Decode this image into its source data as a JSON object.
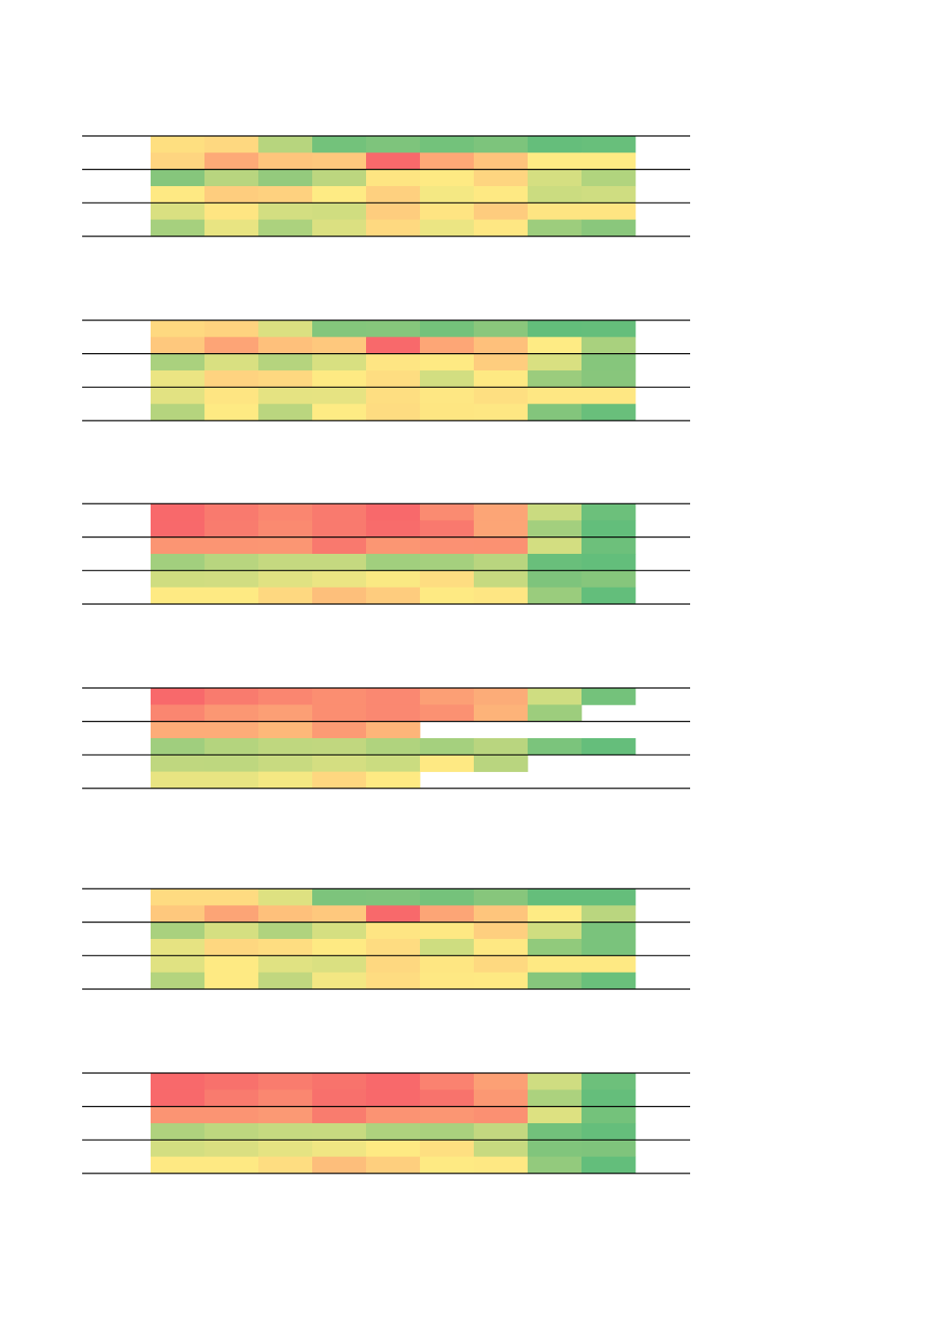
{
  "chart_data": [
    {
      "type": "heatmap",
      "title": "",
      "xlabel": "",
      "ylabel": "",
      "color_scale": "red-yellow-green",
      "rows": [
        [
          "#fedf80",
          "#fed880",
          "#b7d57e",
          "#73c27b",
          "#7ec47c",
          "#73c27b",
          "#7dc47c",
          "#65be7b",
          "#68bf7b"
        ],
        [
          "#fed580",
          "#fdaa77",
          "#fec57c",
          "#fec87d",
          "#f8696b",
          "#fda876",
          "#fec47c",
          "#feeb84",
          "#feeb84"
        ],
        [
          "#86c67c",
          "#b8d57f",
          "#94ca7d",
          "#bcd67f",
          "#fee582",
          "#feea83",
          "#fed580",
          "#d5df81",
          "#b1d47e"
        ],
        [
          "#fee983",
          "#fecd7e",
          "#fed17f",
          "#feeb84",
          "#fed07f",
          "#f4e883",
          "#fee983",
          "#cbdc80",
          "#cfdd81"
        ],
        [
          "#d9e081",
          "#fee582",
          "#d3de81",
          "#d0dd80",
          "#fecd7e",
          "#fee482",
          "#fecc7e",
          "#fee582",
          "#fee582"
        ],
        [
          "#a6d07e",
          "#e8e482",
          "#acd27e",
          "#dbe081",
          "#fed980",
          "#ebe583",
          "#fee783",
          "#9dcd7d",
          "#8ac77c"
        ]
      ]
    },
    {
      "type": "heatmap",
      "title": "",
      "xlabel": "",
      "ylabel": "",
      "color_scale": "red-yellow-green",
      "rows": [
        [
          "#fed980",
          "#fed37f",
          "#dbe081",
          "#84c67c",
          "#86c67c",
          "#74c27b",
          "#8ac77c",
          "#63be7b",
          "#65be7b"
        ],
        [
          "#fec87d",
          "#fda476",
          "#fec07b",
          "#fec87d",
          "#f8696b",
          "#fda676",
          "#fec07b",
          "#feeb84",
          "#a9d17e"
        ],
        [
          "#aad17e",
          "#d9e081",
          "#b5d47e",
          "#d8e081",
          "#fee583",
          "#feea83",
          "#fecd7e",
          "#d9e081",
          "#86c67c"
        ],
        [
          "#ebe583",
          "#fed380",
          "#fed880",
          "#feea83",
          "#fedd81",
          "#d2de81",
          "#fee983",
          "#9bcc7d",
          "#88c67c"
        ],
        [
          "#e2e282",
          "#fee582",
          "#e5e382",
          "#e6e382",
          "#fede81",
          "#fee783",
          "#fedf81",
          "#fee783",
          "#fee783"
        ],
        [
          "#b5d47e",
          "#feea83",
          "#bad67f",
          "#feeb84",
          "#fedc81",
          "#fee682",
          "#fee783",
          "#83c57c",
          "#69bf7b"
        ]
      ]
    },
    {
      "type": "heatmap",
      "title": "",
      "xlabel": "",
      "ylabel": "",
      "color_scale": "red-yellow-green",
      "rows": [
        [
          "#f8696b",
          "#f97a6e",
          "#fa8670",
          "#f97a6e",
          "#f8696b",
          "#fa8b71",
          "#fca576",
          "#cadb80",
          "#6cc07b"
        ],
        [
          "#f8696b",
          "#f97c6e",
          "#fa8a70",
          "#f97a6e",
          "#f86c6b",
          "#f9796e",
          "#fca576",
          "#a3cf7e",
          "#63be7b"
        ],
        [
          "#fb9573",
          "#fb9573",
          "#fb9673",
          "#f9796e",
          "#fb9673",
          "#fb9173",
          "#fb9172",
          "#d3de81",
          "#6dc07b"
        ],
        [
          "#a2cf7e",
          "#b8d57f",
          "#c5d980",
          "#c5d980",
          "#a1cf7e",
          "#a5d07e",
          "#b9d57f",
          "#69bf7b",
          "#63be7b"
        ],
        [
          "#cfdd80",
          "#d1dd81",
          "#e0e282",
          "#ebe583",
          "#fae983",
          "#fedd81",
          "#c6da80",
          "#7ec47c",
          "#86c67c"
        ],
        [
          "#feea83",
          "#feea83",
          "#fed880",
          "#fdbf7b",
          "#fecc7e",
          "#feea83",
          "#fee683",
          "#9acc7d",
          "#63be7b"
        ]
      ]
    },
    {
      "type": "heatmap",
      "title": "",
      "xlabel": "",
      "ylabel": "",
      "color_scale": "red-yellow-green",
      "rows": [
        [
          "#f8696b",
          "#f97b6e",
          "#fa8670",
          "#fb8e71",
          "#fa8871",
          "#fc9f75",
          "#fcac78",
          "#cfdd81",
          "#74c27b"
        ],
        [
          "#fa8670",
          "#fb9773",
          "#fc9f75",
          "#fb8e71",
          "#fa8871",
          "#fb9172",
          "#fdb379",
          "#9dcd7d",
          null
        ],
        [
          "#fdac78",
          "#fdac78",
          "#fdb879",
          "#fc9b74",
          "#fdb579",
          null,
          null,
          null,
          null
        ],
        [
          "#a0ce7e",
          "#b4d47e",
          "#bfd77f",
          "#c1d77f",
          "#b0d37e",
          "#a5d07e",
          "#b9d57f",
          "#7bc47c",
          "#65be7b"
        ],
        [
          "#bfd77f",
          "#bed77f",
          "#c8da80",
          "#d4de81",
          "#cbdc80",
          "#fee983",
          "#b9d57f",
          null,
          null
        ],
        [
          "#e8e482",
          "#e8e482",
          "#f4e883",
          "#fed780",
          "#feea83",
          null,
          null,
          null,
          null
        ]
      ]
    },
    {
      "type": "heatmap",
      "title": "",
      "xlabel": "",
      "ylabel": "",
      "color_scale": "red-yellow-green",
      "rows": [
        [
          "#fedb81",
          "#fedb81",
          "#dee181",
          "#7dc47c",
          "#7fc47c",
          "#75c27b",
          "#87c67c",
          "#65be7b",
          "#65be7b"
        ],
        [
          "#fec87d",
          "#fca476",
          "#fec07b",
          "#fec87d",
          "#f8696b",
          "#fca576",
          "#fec57c",
          "#feeb84",
          "#bad67f"
        ],
        [
          "#a9d17e",
          "#d5df81",
          "#b0d37e",
          "#d5df81",
          "#fee583",
          "#fee883",
          "#fecf7f",
          "#cfdd80",
          "#7ac37c"
        ],
        [
          "#e6e382",
          "#fed780",
          "#fedd81",
          "#feea83",
          "#fedc81",
          "#cedd80",
          "#fee883",
          "#91ca7c",
          "#7ac37c"
        ],
        [
          "#e0e282",
          "#feea83",
          "#e0e282",
          "#dae081",
          "#fed880",
          "#fee682",
          "#fed980",
          "#fee983",
          "#fee983"
        ],
        [
          "#b4d47e",
          "#feea83",
          "#c1d77f",
          "#f3e783",
          "#fedc81",
          "#fee883",
          "#fee983",
          "#86c67c",
          "#6ac07b"
        ]
      ]
    },
    {
      "type": "heatmap",
      "title": "",
      "xlabel": "",
      "ylabel": "",
      "color_scale": "red-yellow-green",
      "rows": [
        [
          "#f8696b",
          "#f8716c",
          "#f97c6e",
          "#f8736c",
          "#f8696b",
          "#fa8270",
          "#fca075",
          "#cfdd81",
          "#6dc07b"
        ],
        [
          "#f8696b",
          "#f97b6e",
          "#fa8770",
          "#f8706c",
          "#f8696b",
          "#f8736c",
          "#fb9873",
          "#acd27e",
          "#65be7b"
        ],
        [
          "#fb9473",
          "#fb9473",
          "#fb9974",
          "#f97c6e",
          "#fb9373",
          "#fb9673",
          "#fb9072",
          "#dde181",
          "#74c27b"
        ],
        [
          "#afd27e",
          "#bed77f",
          "#c6da80",
          "#c7da80",
          "#aed27e",
          "#aad17e",
          "#c3d880",
          "#72c17b",
          "#65be7b"
        ],
        [
          "#d3de81",
          "#dadf81",
          "#e5e382",
          "#f0e683",
          "#feea83",
          "#fedf81",
          "#c7da80",
          "#81c57c",
          "#7fc47c"
        ],
        [
          "#fee983",
          "#fee983",
          "#fedd81",
          "#fdbe7b",
          "#fecf7e",
          "#feea83",
          "#fee883",
          "#93ca7d",
          "#63be7b"
        ]
      ]
    }
  ]
}
